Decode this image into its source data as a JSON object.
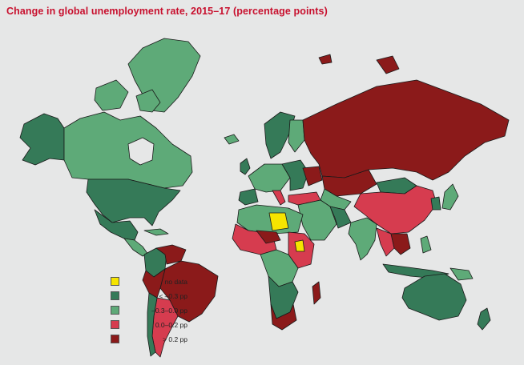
{
  "title": "Change in global unemployment rate, 2015–17 (percentage points)",
  "colors": {
    "no_data": "#f5e400",
    "lt_neg03": "#357a58",
    "neg03_0": "#5eaa78",
    "p0_02": "#d63c4f",
    "gt_02": "#8b1a1a",
    "border": "#1a1a1a",
    "background": "#e6e7e7"
  },
  "legend": [
    {
      "label": "no data",
      "color": "#f5e400"
    },
    {
      "label": "< –0.3 pp",
      "color": "#357a58"
    },
    {
      "label": "–0.3–0.0 pp",
      "color": "#5eaa78"
    },
    {
      "label": "0.0–0.2 pp",
      "color": "#d63c4f"
    },
    {
      "label": "> 0.2 pp",
      "color": "#8b1a1a"
    }
  ]
}
